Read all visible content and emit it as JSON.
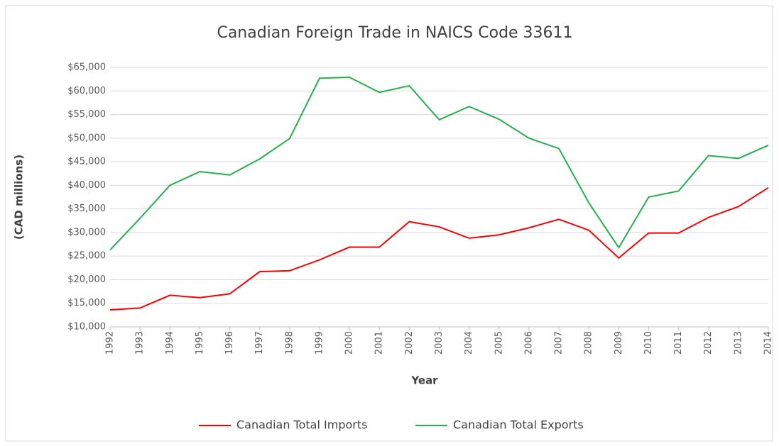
{
  "chart_data": {
    "type": "line",
    "title": "Canadian Foreign Trade in NAICS Code 33611",
    "x_label": "Year",
    "y_label": "(CAD millions)",
    "categories": [
      "1992",
      "1993",
      "1994",
      "1995",
      "1996",
      "1997",
      "1998",
      "1999",
      "2000",
      "2001",
      "2002",
      "2003",
      "2004",
      "2005",
      "2006",
      "2007",
      "2008",
      "2009",
      "2010",
      "2011",
      "2012",
      "2013",
      "2014"
    ],
    "series": [
      {
        "name": "Canadian Total Imports",
        "color": "#ff0000",
        "values": [
          13600,
          14000,
          16700,
          16200,
          17000,
          21700,
          21900,
          24200,
          26900,
          26900,
          32300,
          31200,
          28800,
          29500,
          31000,
          32800,
          30500,
          24600,
          29900,
          29900,
          33200,
          35500,
          39500
        ]
      },
      {
        "name": "Canadian Total Exports",
        "color": "#22b14c",
        "values": [
          26300,
          33000,
          40000,
          42900,
          42200,
          45600,
          49900,
          62700,
          62900,
          59700,
          61100,
          53900,
          56700,
          54000,
          50000,
          47800,
          36300,
          26800,
          37500,
          38800,
          46300,
          45700,
          48500
        ]
      }
    ],
    "ylim": [
      10000,
      65000
    ],
    "yticks": [
      {
        "value": 10000,
        "label": "$10,000"
      },
      {
        "value": 15000,
        "label": "$15,000"
      },
      {
        "value": 20000,
        "label": "$20,000"
      },
      {
        "value": 25000,
        "label": "$25,000"
      },
      {
        "value": 30000,
        "label": "$30,000"
      },
      {
        "value": 35000,
        "label": "$35,000"
      },
      {
        "value": 40000,
        "label": "$40,000"
      },
      {
        "value": 45000,
        "label": "$45,000"
      },
      {
        "value": 50000,
        "label": "$50,000"
      },
      {
        "value": 55000,
        "label": "$55,000"
      },
      {
        "value": 60000,
        "label": "$60,000"
      },
      {
        "value": 65000,
        "label": "$65,000"
      }
    ],
    "grid": true,
    "legend": "bottom"
  }
}
